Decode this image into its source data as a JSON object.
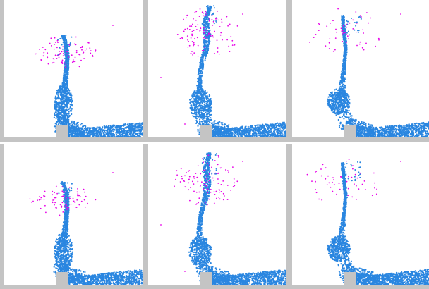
{
  "colors": {
    "background": "#ffffff",
    "wall": "#c4c4c4",
    "obstacle": "#c4c4c4",
    "fluid": "#2a86e0",
    "spray": "#e800e8"
  },
  "panels": [
    {
      "row": 1,
      "col": 1,
      "frame": "jet-rising"
    },
    {
      "row": 1,
      "col": 2,
      "frame": "jet-peak"
    },
    {
      "row": 1,
      "col": 3,
      "frame": "jet-falling"
    },
    {
      "row": 2,
      "col": 1,
      "frame": "jet-rising"
    },
    {
      "row": 2,
      "col": 2,
      "frame": "jet-peak"
    },
    {
      "row": 2,
      "col": 3,
      "frame": "jet-falling"
    }
  ]
}
